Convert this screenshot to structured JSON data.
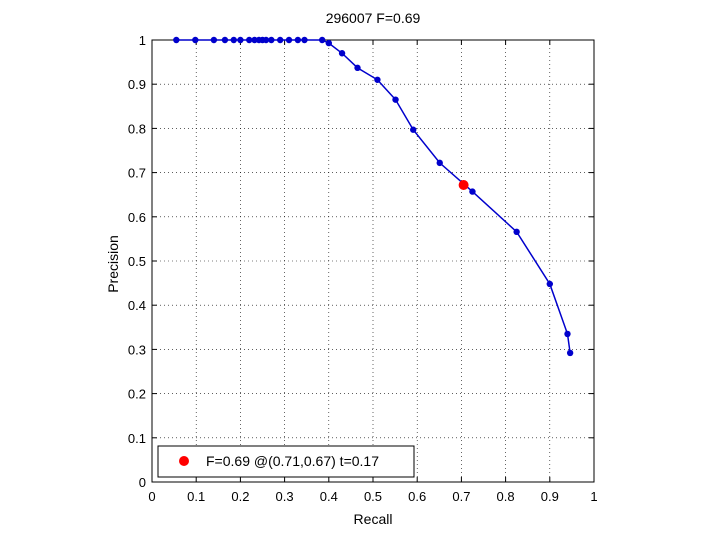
{
  "chart_data": {
    "type": "line",
    "title": "296007 F=0.69",
    "xlabel": "Recall",
    "ylabel": "Precision",
    "xlim": [
      0,
      1
    ],
    "ylim": [
      0,
      1
    ],
    "grid": true,
    "xticks": [
      "0",
      "0.1",
      "0.2",
      "0.3",
      "0.4",
      "0.5",
      "0.6",
      "0.7",
      "0.8",
      "0.9",
      "1"
    ],
    "yticks": [
      "0",
      "0.1",
      "0.2",
      "0.3",
      "0.4",
      "0.5",
      "0.6",
      "0.7",
      "0.8",
      "0.9",
      "1"
    ],
    "series": [
      {
        "color": "#0000cc",
        "x": [
          0.055,
          0.098,
          0.14,
          0.165,
          0.185,
          0.2,
          0.22,
          0.232,
          0.242,
          0.25,
          0.258,
          0.27,
          0.29,
          0.31,
          0.33,
          0.345,
          0.385,
          0.4,
          0.43,
          0.465,
          0.51,
          0.551,
          0.591,
          0.651,
          0.725,
          0.825,
          0.9,
          0.94,
          0.946
        ],
        "y": [
          1.0,
          1.0,
          1.0,
          1.0,
          1.0,
          1.0,
          1.0,
          1.0,
          1.0,
          1.0,
          1.0,
          1.0,
          1.0,
          1.0,
          1.0,
          1.0,
          1.0,
          0.993,
          0.97,
          0.937,
          0.91,
          0.865,
          0.797,
          0.722,
          0.657,
          0.566,
          0.448,
          0.335,
          0.292
        ]
      }
    ],
    "highlight": {
      "x": 0.705,
      "y": 0.672,
      "color": "#ff0000"
    },
    "legend": {
      "label": "F=0.69 @(0.71,0.67) t=0.17",
      "position": "bottom-left"
    }
  }
}
